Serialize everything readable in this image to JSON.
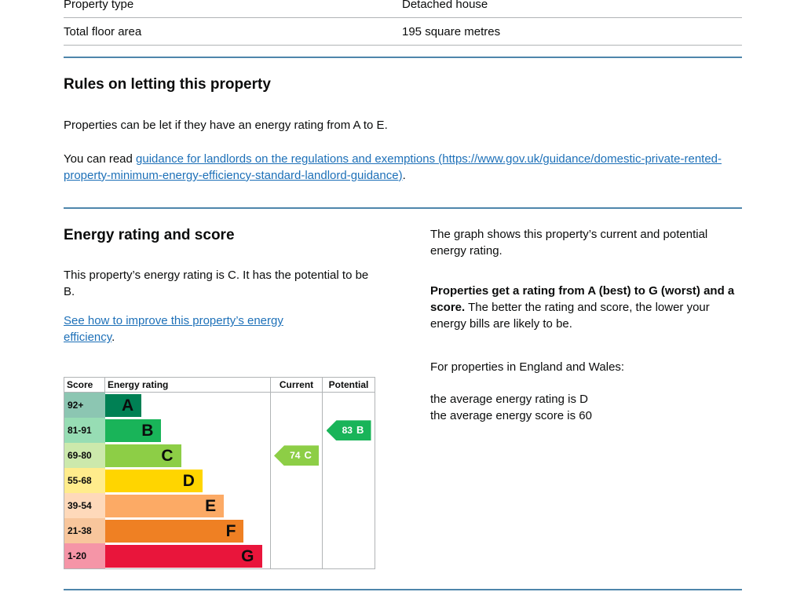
{
  "colors": {
    "text": "#0b0c0c",
    "link": "#1d70b8",
    "section_break": "#4e86ab",
    "table_border": "#b1b4b6"
  },
  "property_table": {
    "rows": [
      {
        "label": "Property type",
        "value": "Detached house"
      },
      {
        "label": "Total floor area",
        "value": "195 square metres"
      }
    ]
  },
  "rules": {
    "heading": "Rules on letting this property",
    "paragraph": "Properties can be let if they have an energy rating from A to E.",
    "read_prefix": "You can read ",
    "guidance_link": "guidance for landlords on the regulations and exemptions (https://www.gov.uk/guidance/domestic-private-rented-property-minimum-energy-efficiency-standard-landlord-guidance)",
    "read_suffix": "."
  },
  "energy": {
    "heading": "Energy rating and score",
    "intro": "This property’s energy rating is C. It has the potential to be B.",
    "improve_link": "See how to improve this property’s energy efficiency",
    "improve_suffix": "."
  },
  "explainer": {
    "graph_info": "The graph shows this property’s current and potential energy rating.",
    "rating_bold": "Properties get a rating from A (best) to G (worst) and a score.",
    "rating_rest": " The better the rating and score, the lower your energy bills are likely to be.",
    "regions": "For properties in England and Wales:",
    "average_rating": "the average energy rating is D",
    "average_score": "the average energy score is 60"
  },
  "chart_data": {
    "type": "bar",
    "title": "Energy rating and score chart",
    "columns": [
      "Score",
      "Energy rating",
      "Current",
      "Potential"
    ],
    "bands": [
      {
        "score_range": "92+",
        "letter": "A",
        "color": "#008054",
        "width_pct": 22
      },
      {
        "score_range": "81-91",
        "letter": "B",
        "color": "#19b459",
        "width_pct": 34
      },
      {
        "score_range": "69-80",
        "letter": "C",
        "color": "#8dce46",
        "width_pct": 46
      },
      {
        "score_range": "55-68",
        "letter": "D",
        "color": "#ffd500",
        "width_pct": 59
      },
      {
        "score_range": "39-54",
        "letter": "E",
        "color": "#fcaa65",
        "width_pct": 72
      },
      {
        "score_range": "21-38",
        "letter": "F",
        "color": "#ef8023",
        "width_pct": 84
      },
      {
        "score_range": "1-20",
        "letter": "G",
        "color": "#e9153b",
        "width_pct": 95
      }
    ],
    "current": {
      "score": 74,
      "letter": "C",
      "color": "#8dce46",
      "band_index": 2
    },
    "potential": {
      "score": 83,
      "letter": "B",
      "color": "#19b459",
      "band_index": 1
    }
  }
}
